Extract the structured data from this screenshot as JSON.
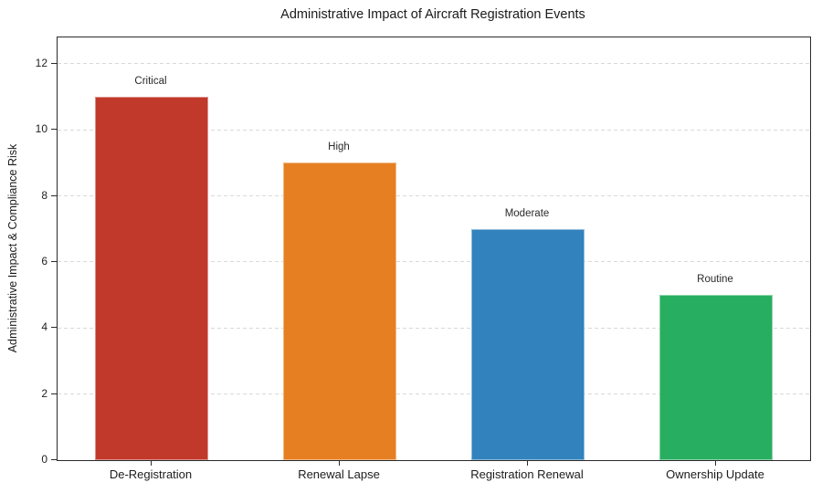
{
  "chart_data": {
    "type": "bar",
    "title": "Administrative Impact of Aircraft Registration Events",
    "xlabel": "",
    "ylabel": "Administrative Impact & Compliance Risk",
    "categories": [
      "De-Registration",
      "Renewal Lapse",
      "Registration Renewal",
      "Ownership Update"
    ],
    "values": [
      11,
      9,
      7,
      5
    ],
    "bar_labels": [
      "Critical",
      "High",
      "Moderate",
      "Routine"
    ],
    "bar_colors": [
      "#c0392b",
      "#e67f22",
      "#3182bd",
      "#27ae60"
    ],
    "ylim": [
      0,
      12.8
    ],
    "yticks": [
      0,
      2,
      4,
      6,
      8,
      10,
      12
    ],
    "grid": "horizontal-dashed",
    "legend": "none",
    "spines": "full-box",
    "background_color": "#ffffff",
    "text_color": "#1a1a1a"
  }
}
